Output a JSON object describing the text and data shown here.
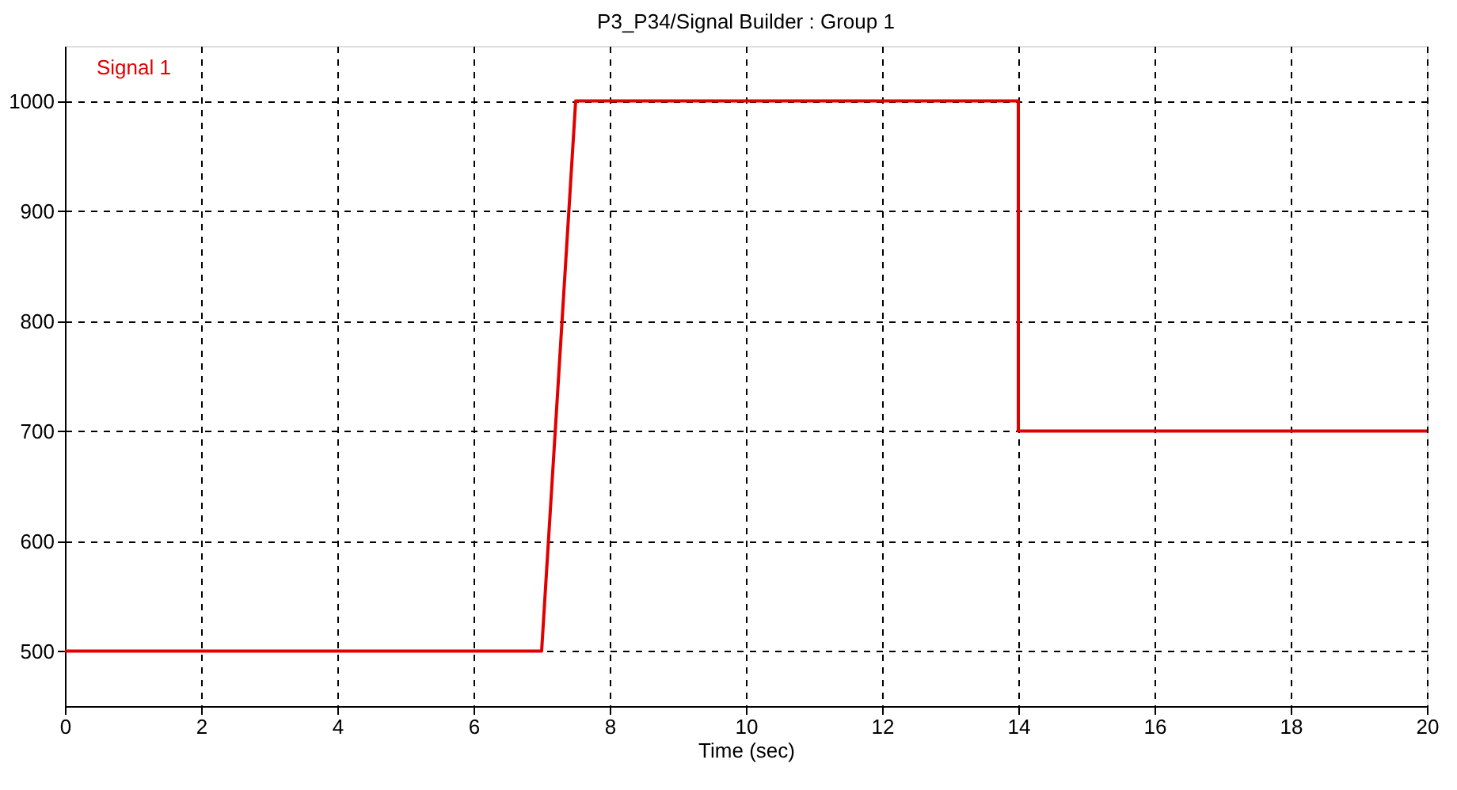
{
  "chart_data": {
    "type": "line",
    "title": "P3_P34/Signal Builder : Group 1",
    "xlabel": "Time (sec)",
    "x": [
      0,
      7,
      7.5,
      14,
      14,
      20
    ],
    "series": [
      {
        "name": "Signal 1",
        "color": "#e00000",
        "values": [
          500,
          500,
          1000,
          1000,
          700,
          700
        ]
      }
    ],
    "xlim": [
      0,
      20
    ],
    "xticks": [
      0,
      2,
      4,
      6,
      8,
      10,
      12,
      14,
      16,
      18,
      20
    ],
    "ylim": [
      450,
      1050
    ],
    "yticks": [
      500,
      600,
      700,
      800,
      900,
      1000
    ],
    "grid": true,
    "legend": "top left",
    "line_style": "solid",
    "marker": "none"
  }
}
